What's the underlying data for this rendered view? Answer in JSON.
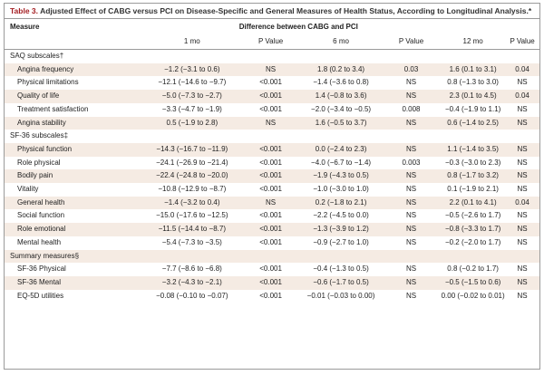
{
  "table": {
    "title_number": "Table 3.",
    "title_text": "Adjusted Effect of CABG versus PCI on Disease-Specific and General Measures of Health Status, According to Longitudinal Analysis.*",
    "header_measure": "Measure",
    "header_group": "Difference between CABG and PCI",
    "subheaders": [
      "1 mo",
      "P Value",
      "6 mo",
      "P Value",
      "12 mo",
      "P Value"
    ],
    "sections": [
      {
        "label": "SAQ subscales†",
        "rows": [
          [
            "Angina frequency",
            "−1.2 (−3.1 to 0.6)",
            "NS",
            "1.8 (0.2 to 3.4)",
            "0.03",
            "1.6 (0.1 to 3.1)",
            "0.04"
          ],
          [
            "Physical limitations",
            "−12.1 (−14.6 to −9.7)",
            "<0.001",
            "−1.4 (−3.6 to 0.8)",
            "NS",
            "0.8 (−1.3 to 3.0)",
            "NS"
          ],
          [
            "Quality of life",
            "−5.0 (−7.3 to −2.7)",
            "<0.001",
            "1.4 (−0.8 to 3.6)",
            "NS",
            "2.3 (0.1 to 4.5)",
            "0.04"
          ],
          [
            "Treatment satisfaction",
            "−3.3 (−4.7 to −1.9)",
            "<0.001",
            "−2.0 (−3.4 to −0.5)",
            "0.008",
            "−0.4 (−1.9 to 1.1)",
            "NS"
          ],
          [
            "Angina stability",
            "0.5 (−1.9 to 2.8)",
            "NS",
            "1.6 (−0.5 to 3.7)",
            "NS",
            "0.6 (−1.4 to 2.5)",
            "NS"
          ]
        ]
      },
      {
        "label": "SF-36 subscales‡",
        "rows": [
          [
            "Physical function",
            "−14.3 (−16.7 to −11.9)",
            "<0.001",
            "0.0 (−2.4 to 2.3)",
            "NS",
            "1.1 (−1.4 to 3.5)",
            "NS"
          ],
          [
            "Role physical",
            "−24.1 (−26.9 to −21.4)",
            "<0.001",
            "−4.0 (−6.7 to −1.4)",
            "0.003",
            "−0.3 (−3.0 to 2.3)",
            "NS"
          ],
          [
            "Bodily pain",
            "−22.4 (−24.8 to −20.0)",
            "<0.001",
            "−1.9 (−4.3 to 0.5)",
            "NS",
            "0.8 (−1.7 to 3.2)",
            "NS"
          ],
          [
            "Vitality",
            "−10.8 (−12.9 to −8.7)",
            "<0.001",
            "−1.0 (−3.0 to 1.0)",
            "NS",
            "0.1 (−1.9 to 2.1)",
            "NS"
          ],
          [
            "General health",
            "−1.4 (−3.2 to 0.4)",
            "NS",
            "0.2 (−1.8 to 2.1)",
            "NS",
            "2.2 (0.1 to 4.1)",
            "0.04"
          ],
          [
            "Social function",
            "−15.0 (−17.6 to −12.5)",
            "<0.001",
            "−2.2 (−4.5 to 0.0)",
            "NS",
            "−0.5 (−2.6 to 1.7)",
            "NS"
          ],
          [
            "Role emotional",
            "−11.5 (−14.4 to −8.7)",
            "<0.001",
            "−1.3 (−3.9 to 1.2)",
            "NS",
            "−0.8 (−3.3 to 1.7)",
            "NS"
          ],
          [
            "Mental health",
            "−5.4 (−7.3 to −3.5)",
            "<0.001",
            "−0.9 (−2.7 to 1.0)",
            "NS",
            "−0.2 (−2.0 to 1.7)",
            "NS"
          ]
        ]
      },
      {
        "label": "Summary measures§",
        "rows": [
          [
            "SF-36 Physical",
            "−7.7 (−8.6 to −6.8)",
            "<0.001",
            "−0.4 (−1.3 to 0.5)",
            "NS",
            "0.8 (−0.2 to 1.7)",
            "NS"
          ],
          [
            "SF-36 Mental",
            "−3.2 (−4.3 to −2.1)",
            "<0.001",
            "−0.6 (−1.7 to 0.5)",
            "NS",
            "−0.5 (−1.5 to 0.6)",
            "NS"
          ],
          [
            "EQ-5D utilities",
            "−0.08 (−0.10 to −0.07)",
            "<0.001",
            "−0.01 (−0.03 to 0.00)",
            "NS",
            "0.00 (−0.02 to 0.01)",
            "NS"
          ]
        ]
      }
    ]
  }
}
